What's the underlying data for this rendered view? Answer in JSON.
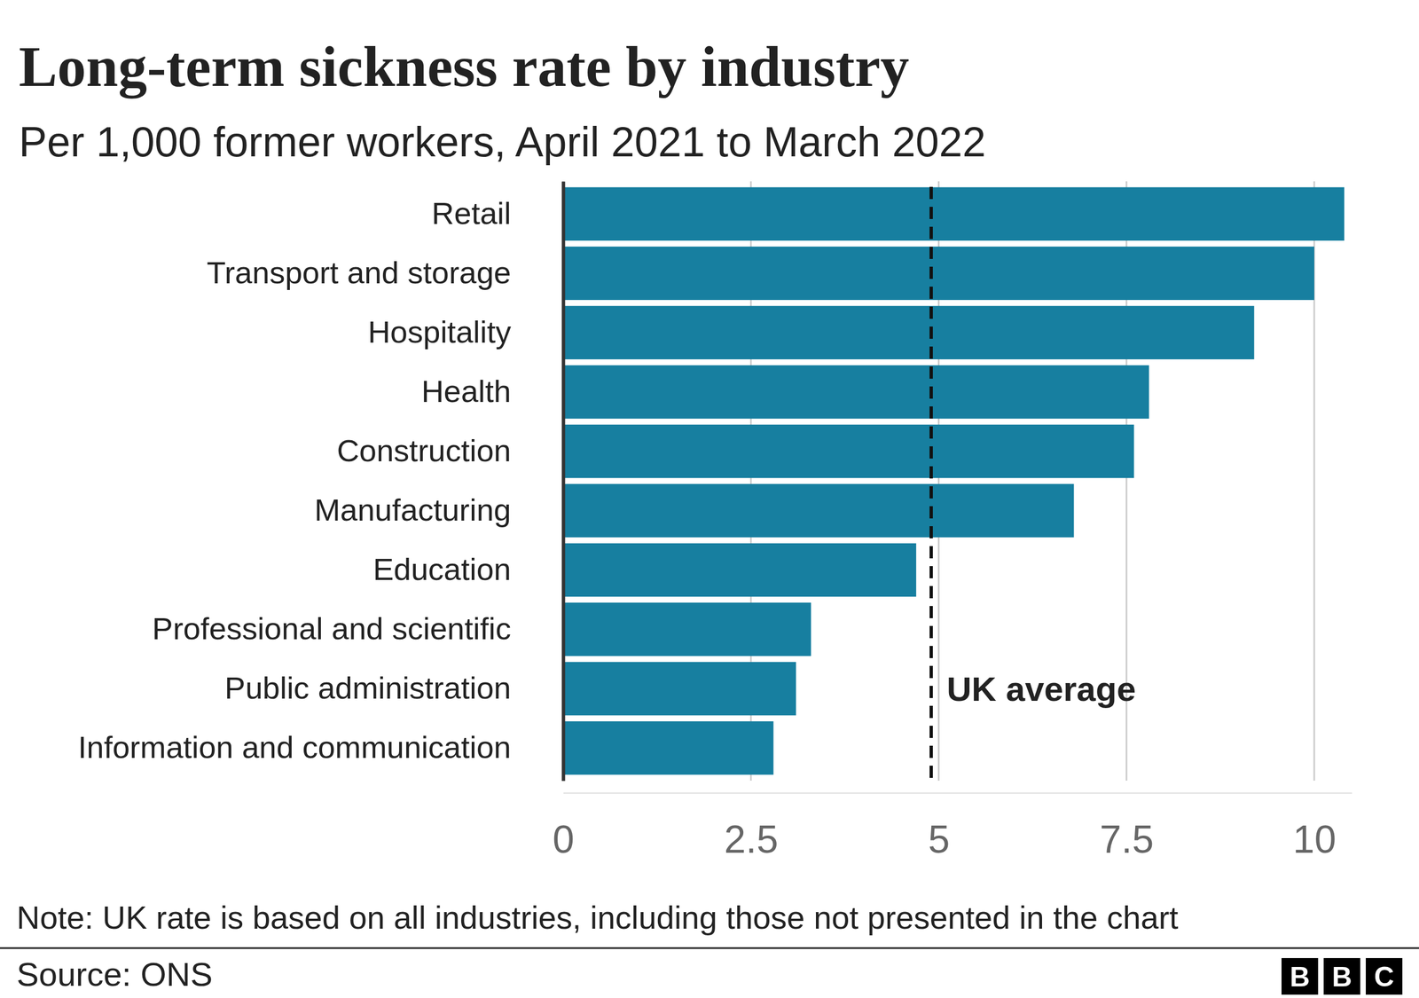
{
  "chart_data": {
    "type": "bar",
    "orientation": "horizontal",
    "title": "Long-term sickness rate by industry",
    "subtitle": "Per 1,000 former workers, April 2021 to March 2022",
    "categories": [
      "Retail",
      "Transport and storage",
      "Hospitality",
      "Health",
      "Construction",
      "Manufacturing",
      "Education",
      "Professional and scientific",
      "Public administration",
      "Information and communication"
    ],
    "values": [
      10.4,
      10.0,
      9.2,
      7.8,
      7.6,
      6.8,
      4.7,
      3.3,
      3.1,
      2.8
    ],
    "color": "#177fa0",
    "xlim": [
      0,
      10.5
    ],
    "xticks": [
      0,
      2.5,
      5,
      7.5,
      10
    ],
    "grid": true,
    "reference_line": {
      "value": 4.9,
      "label": "UK average"
    },
    "note": "Note: UK rate is based on all industries, including those not presented in the chart",
    "source": "Source: ONS",
    "logo": "BBC"
  }
}
